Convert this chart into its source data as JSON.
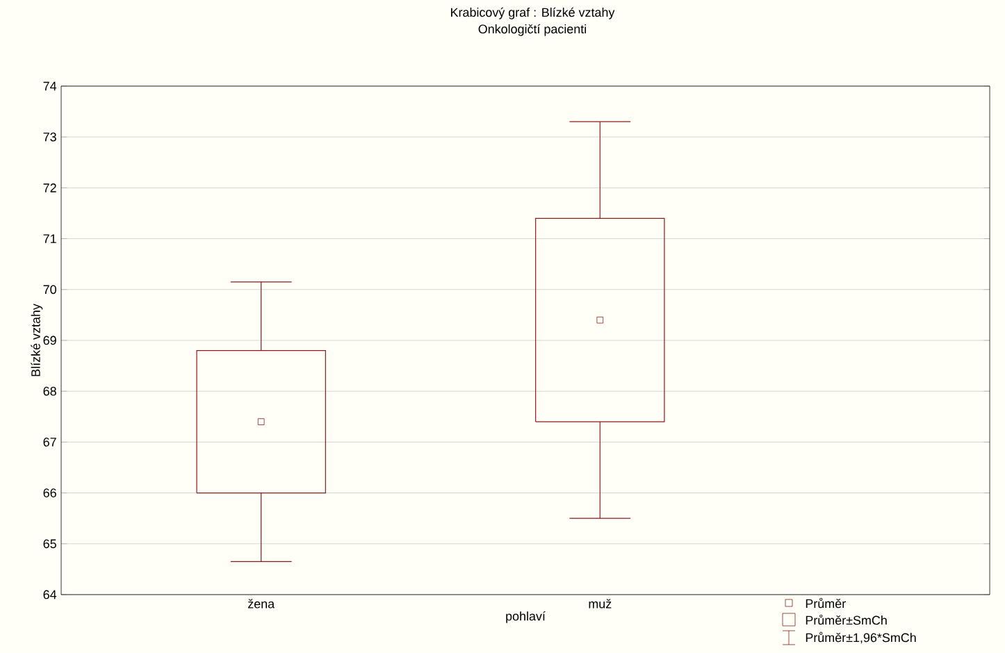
{
  "chart_data": {
    "type": "box",
    "title": "Krabicový graf :  Blízké vztahy",
    "subtitle": "Onkologičtí pacienti",
    "xlabel": "pohlaví",
    "ylabel": "Blízké vztahy",
    "categories": [
      "žena",
      "muž"
    ],
    "color": "#8b1a1a",
    "boxes": [
      {
        "low": 64.65,
        "q1": 66.0,
        "mean": 67.4,
        "q3": 68.8,
        "high": 70.15
      },
      {
        "low": 65.5,
        "q1": 67.4,
        "mean": 69.4,
        "q3": 71.4,
        "high": 73.3
      }
    ],
    "ylim": [
      64,
      74
    ],
    "yticks": [
      64,
      65,
      66,
      67,
      68,
      69,
      70,
      71,
      72,
      73,
      74
    ],
    "grid": "y",
    "marker": "square",
    "annotations": [
      "Průměr",
      "Průměr±SmCh",
      "Průměr±1,96*SmCh"
    ]
  }
}
